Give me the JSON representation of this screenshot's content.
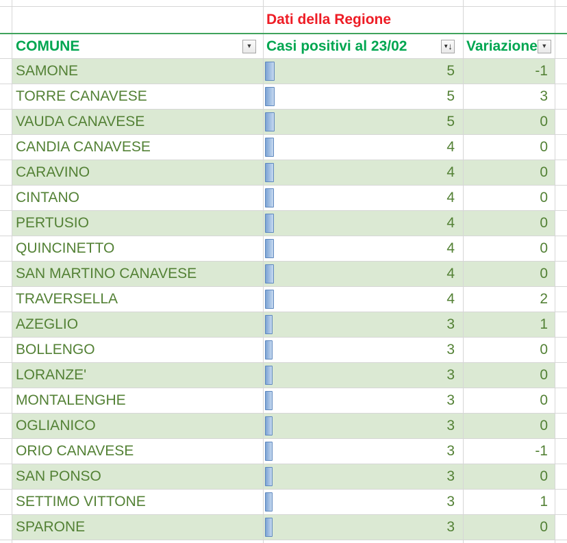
{
  "region_header": {
    "title": "Dati della Regione"
  },
  "table": {
    "headers": {
      "comune": {
        "label": "COMUNE",
        "filter_icon": "filter-dropdown-icon"
      },
      "casi": {
        "label": "Casi positivi al 23/02",
        "filter_icon": "sort-descending-filter-icon"
      },
      "variazione": {
        "label": "Variazione",
        "filter_icon": "filter-dropdown-icon"
      }
    },
    "rows": [
      {
        "comune": "SAMONE",
        "casi": "5",
        "variazione": "-1"
      },
      {
        "comune": "TORRE CANAVESE",
        "casi": "5",
        "variazione": "3"
      },
      {
        "comune": "VAUDA CANAVESE",
        "casi": "5",
        "variazione": "0"
      },
      {
        "comune": "CANDIA CANAVESE",
        "casi": "4",
        "variazione": "0"
      },
      {
        "comune": "CARAVINO",
        "casi": "4",
        "variazione": "0"
      },
      {
        "comune": "CINTANO",
        "casi": "4",
        "variazione": "0"
      },
      {
        "comune": "PERTUSIO",
        "casi": "4",
        "variazione": "0"
      },
      {
        "comune": "QUINCINETTO",
        "casi": "4",
        "variazione": "0"
      },
      {
        "comune": "SAN MARTINO CANAVESE",
        "casi": "4",
        "variazione": "0"
      },
      {
        "comune": "TRAVERSELLA",
        "casi": "4",
        "variazione": "2"
      },
      {
        "comune": "AZEGLIO",
        "casi": "3",
        "variazione": "1"
      },
      {
        "comune": "BOLLENGO",
        "casi": "3",
        "variazione": "0"
      },
      {
        "comune": "LORANZE'",
        "casi": "3",
        "variazione": "0"
      },
      {
        "comune": "MONTALENGHE",
        "casi": "3",
        "variazione": "0"
      },
      {
        "comune": "OGLIANICO",
        "casi": "3",
        "variazione": "0"
      },
      {
        "comune": "ORIO CANAVESE",
        "casi": "3",
        "variazione": "-1"
      },
      {
        "comune": "SAN PONSO",
        "casi": "3",
        "variazione": "0"
      },
      {
        "comune": "SETTIMO VITTONE",
        "casi": "3",
        "variazione": "1"
      },
      {
        "comune": "SPARONE",
        "casi": "3",
        "variazione": "0"
      }
    ]
  },
  "icons": {
    "filter_dropdown_glyph": "▼",
    "sort_descending_glyph": "↓"
  },
  "colors": {
    "title_red": "#EE1C25",
    "header_green": "#00A650",
    "data_text_green": "#538135",
    "row_green_bg": "#DBE9D3",
    "gridline": "#D6D6D6",
    "table_top_border_green": "#3FA35C",
    "databar_fill_start": "#7CA3D4",
    "databar_fill_end": "#C6D9F0",
    "databar_border": "#5E88BE"
  }
}
